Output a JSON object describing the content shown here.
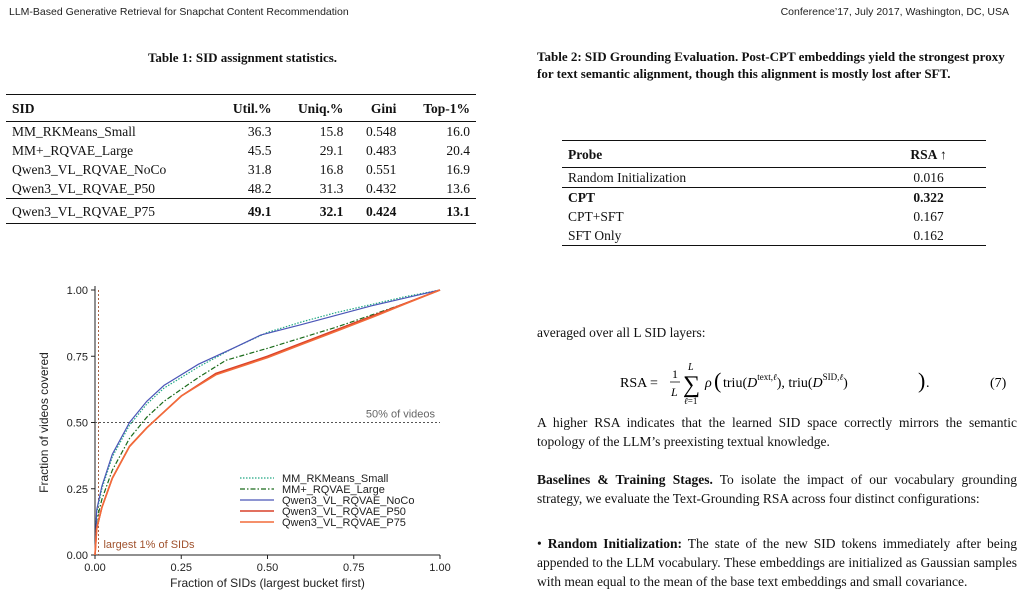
{
  "header": {
    "left": "LLM-Based Generative Retrieval for Snapchat Content Recommendation",
    "right": "Conference’17, July 2017, Washington, DC, USA"
  },
  "table1": {
    "caption": "Table 1: SID assignment statistics.",
    "columns": [
      "SID",
      "Util.%",
      "Uniq.%",
      "Gini",
      "Top-1%"
    ],
    "rows": [
      {
        "sid": "MM_RKMeans_Small",
        "util": "36.3",
        "uniq": "15.8",
        "gini": "0.548",
        "top1": "16.0"
      },
      {
        "sid": "MM+_RQVAE_Large",
        "util": "45.5",
        "uniq": "29.1",
        "gini": "0.483",
        "top1": "20.4"
      },
      {
        "sid": "Qwen3_VL_RQVAE_NoCo",
        "util": "31.8",
        "uniq": "16.8",
        "gini": "0.551",
        "top1": "16.9"
      },
      {
        "sid": "Qwen3_VL_RQVAE_P50",
        "util": "48.2",
        "uniq": "31.3",
        "gini": "0.432",
        "top1": "13.6"
      },
      {
        "sid": "Qwen3_VL_RQVAE_P75",
        "util": "49.1",
        "uniq": "32.1",
        "gini": "0.424",
        "top1": "13.1"
      }
    ]
  },
  "table2": {
    "caption": "Table 2: SID Grounding Evaluation. Post-CPT embeddings yield the strongest proxy for text semantic alignment, though this alignment is mostly lost after SFT.",
    "columns": [
      "Probe",
      "RSA ↑"
    ],
    "rows": [
      {
        "probe": "Random Initialization",
        "rsa": "0.016"
      },
      {
        "probe": "CPT",
        "rsa": "0.322"
      },
      {
        "probe": "CPT+SFT",
        "rsa": "0.167"
      },
      {
        "probe": "SFT Only",
        "rsa": "0.162"
      }
    ]
  },
  "chart_data": {
    "type": "line",
    "xlabel": "Fraction of SIDs (largest bucket first)",
    "ylabel": "Fraction of videos covered",
    "xlim": [
      0,
      1
    ],
    "ylim": [
      0,
      1
    ],
    "xticks": [
      "0.00",
      "0.25",
      "0.50",
      "0.75",
      "1.00"
    ],
    "yticks": [
      "0.00",
      "0.25",
      "0.50",
      "0.75",
      "1.00"
    ],
    "legend_position": "lower-right",
    "annotations": {
      "hline_label": "50% of videos",
      "vline_label": "largest 1% of SIDs"
    },
    "hline_y": 0.5,
    "vline_x": 0.01,
    "series": [
      {
        "name": "MM_RKMeans_Small",
        "color": "#22a884",
        "style": "dotted",
        "x": [
          0,
          0.005,
          0.02,
          0.05,
          0.1,
          0.15,
          0.2,
          0.3,
          0.4,
          0.5,
          0.6,
          0.7,
          0.8,
          0.9,
          1.0
        ],
        "y": [
          0,
          0.16,
          0.25,
          0.37,
          0.49,
          0.57,
          0.63,
          0.71,
          0.78,
          0.84,
          0.88,
          0.915,
          0.945,
          0.975,
          1.0
        ]
      },
      {
        "name": "MM+_RQVAE_Large",
        "color": "#1a6b1a",
        "style": "dashdot",
        "x": [
          0,
          0.005,
          0.02,
          0.05,
          0.1,
          0.15,
          0.2,
          0.3,
          0.38,
          0.5,
          0.6,
          0.7,
          0.8,
          0.9,
          1.0
        ],
        "y": [
          0,
          0.13,
          0.21,
          0.32,
          0.44,
          0.52,
          0.58,
          0.67,
          0.735,
          0.78,
          0.82,
          0.86,
          0.905,
          0.95,
          1.0
        ]
      },
      {
        "name": "Qwen3_VL_RQVAE_NoCo",
        "color": "#4b56b8",
        "style": "solid",
        "x": [
          0,
          0.005,
          0.02,
          0.05,
          0.1,
          0.15,
          0.2,
          0.3,
          0.4,
          0.48,
          0.6,
          0.7,
          0.8,
          0.9,
          1.0
        ],
        "y": [
          0,
          0.17,
          0.26,
          0.38,
          0.5,
          0.58,
          0.64,
          0.72,
          0.78,
          0.83,
          0.87,
          0.905,
          0.94,
          0.97,
          1.0
        ]
      },
      {
        "name": "Qwen3_VL_RQVAE_P50",
        "color": "#d9412a",
        "style": "solid",
        "x": [
          0,
          0.005,
          0.02,
          0.05,
          0.1,
          0.15,
          0.2,
          0.25,
          0.35,
          0.5,
          0.6,
          0.7,
          0.8,
          0.9,
          1.0
        ],
        "y": [
          0,
          0.1,
          0.18,
          0.29,
          0.41,
          0.48,
          0.54,
          0.6,
          0.685,
          0.75,
          0.8,
          0.85,
          0.9,
          0.95,
          1.0
        ]
      },
      {
        "name": "Qwen3_VL_RQVAE_P75",
        "color": "#f26b3a",
        "style": "solid",
        "x": [
          0,
          0.005,
          0.02,
          0.05,
          0.1,
          0.15,
          0.2,
          0.25,
          0.35,
          0.5,
          0.6,
          0.7,
          0.8,
          0.9,
          1.0
        ],
        "y": [
          0,
          0.1,
          0.18,
          0.29,
          0.41,
          0.48,
          0.54,
          0.6,
          0.68,
          0.745,
          0.795,
          0.845,
          0.895,
          0.948,
          1.0
        ]
      }
    ]
  },
  "text": {
    "averaged": "averaged over all L SID layers:",
    "eq_number": "(7)",
    "para_rsa": "A higher RSA indicates that the learned SID space correctly mirrors the semantic topology of the LLM’s preexisting textual knowledge.",
    "baselines_heading": "Baselines & Training Stages.",
    "baselines_body": "To isolate the impact of our vocabulary grounding strategy, we evaluate the Text-Grounding RSA across four distinct configurations:",
    "bullet1_term": "Random Initialization:",
    "bullet1_body": "The state of the new SID tokens immediately after being appended to the LLM vocabulary. These embeddings are initialized as Gaussian samples with mean equal to the mean of the base text embeddings and small covariance."
  }
}
